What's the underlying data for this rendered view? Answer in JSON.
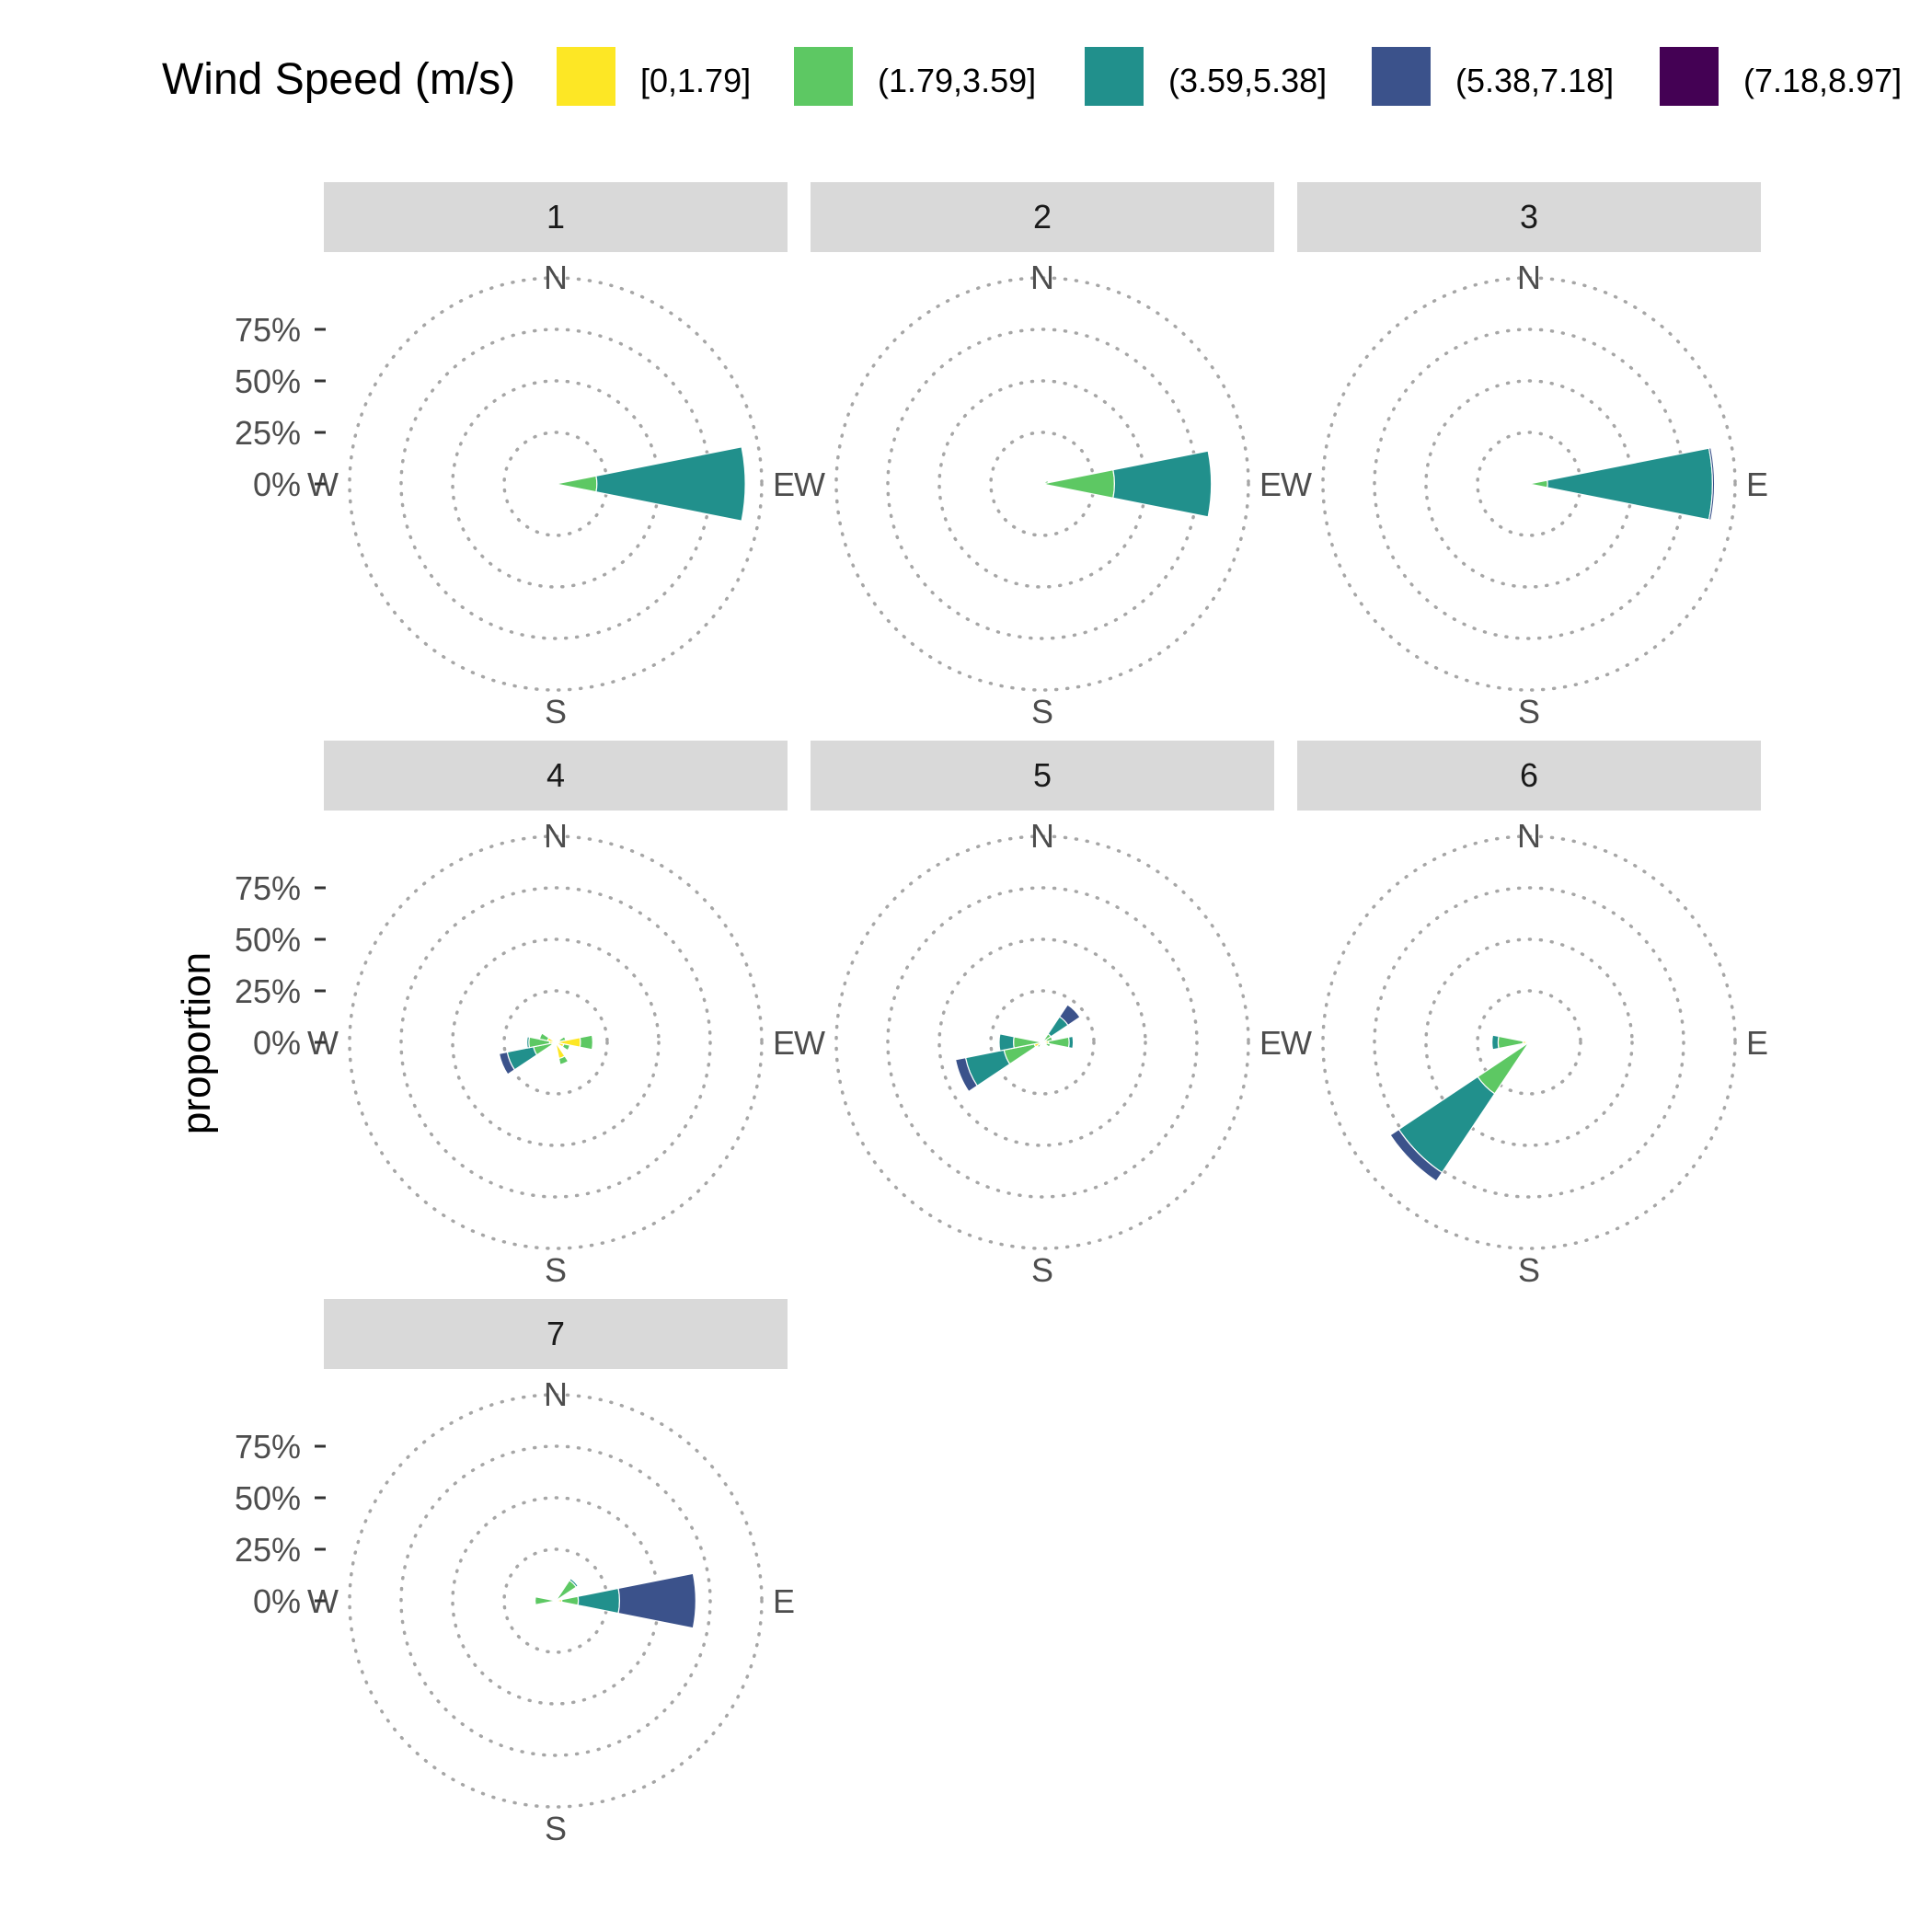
{
  "legend": {
    "title": "Wind Speed (m/s)",
    "entries": [
      {
        "label": "[0,1.79]",
        "color": "#FDE725"
      },
      {
        "label": "(1.79,3.59]",
        "color": "#5DC863"
      },
      {
        "label": "(3.59,5.38]",
        "color": "#21908C"
      },
      {
        "label": "(5.38,7.18]",
        "color": "#3B528B"
      },
      {
        "label": "(7.18,8.97]",
        "color": "#440154"
      }
    ]
  },
  "axis": {
    "ylabel": "proportion",
    "ticks": [
      "0%",
      "25%",
      "50%",
      "75%"
    ],
    "directions": [
      "N",
      "E",
      "S",
      "W"
    ]
  },
  "chart_data": {
    "type": "polar-stacked-bar",
    "title": "",
    "ylabel": "proportion",
    "r_range": [
      0,
      100
    ],
    "r_ticks": [
      0,
      25,
      50,
      75
    ],
    "bin_width_deg": 22.5,
    "speed_bins": [
      "[0,1.79]",
      "(1.79,3.59]",
      "(3.59,5.38]",
      "(5.38,7.18]",
      "(7.18,8.97]"
    ],
    "grid": true,
    "legend_position": "top",
    "panels": [
      {
        "name": "1",
        "bars": [
          {
            "dir": 90,
            "values": [
              0,
              20,
              72,
              0,
              0
            ]
          },
          {
            "dir": 270,
            "values": [
              0,
              0,
              0,
              0,
              1
            ]
          }
        ]
      },
      {
        "name": "2",
        "bars": [
          {
            "dir": 90,
            "values": [
              0,
              35,
              47,
              0,
              0
            ]
          },
          {
            "dir": 67.5,
            "values": [
              0,
              3,
              0,
              0,
              0
            ]
          },
          {
            "dir": 112.5,
            "values": [
              0,
              2,
              0,
              0,
              0
            ]
          },
          {
            "dir": 247.5,
            "values": [
              0,
              2,
              0,
              0,
              0
            ]
          }
        ]
      },
      {
        "name": "3",
        "bars": [
          {
            "dir": 90,
            "values": [
              0,
              9,
              80,
              1,
              0
            ]
          },
          {
            "dir": 270,
            "values": [
              0,
              0,
              0,
              0,
              1
            ]
          }
        ]
      },
      {
        "name": "4",
        "bars": [
          {
            "dir": 67.5,
            "values": [
              2,
              3,
              0,
              0,
              0
            ]
          },
          {
            "dir": 90,
            "values": [
              12,
              6,
              0,
              0,
              0
            ]
          },
          {
            "dir": 112.5,
            "values": [
              4,
              3,
              0,
              0,
              0
            ]
          },
          {
            "dir": 157.5,
            "values": [
              8,
              3,
              0,
              0,
              0
            ]
          },
          {
            "dir": 247.5,
            "values": [
              2,
              9,
              13,
              4,
              0
            ]
          },
          {
            "dir": 270,
            "values": [
              3,
              10,
              1,
              0,
              0
            ]
          },
          {
            "dir": 292.5,
            "values": [
              4,
              4,
              0,
              0,
              0
            ]
          }
        ]
      },
      {
        "name": "5",
        "bars": [
          {
            "dir": 45,
            "values": [
              0,
              5,
              10,
              7,
              0
            ]
          },
          {
            "dir": 67.5,
            "values": [
              2,
              3,
              0,
              0,
              0
            ]
          },
          {
            "dir": 90,
            "values": [
              3,
              10,
              2,
              0,
              0
            ]
          },
          {
            "dir": 112.5,
            "values": [
              2,
              2,
              0,
              0,
              0
            ]
          },
          {
            "dir": 157.5,
            "values": [
              0,
              1,
              0,
              0,
              0
            ]
          },
          {
            "dir": 225,
            "values": [
              0,
              3,
              0,
              0,
              0
            ]
          },
          {
            "dir": 247.5,
            "values": [
              4,
              15,
              19,
              5,
              0
            ]
          },
          {
            "dir": 270,
            "values": [
              0,
              14,
              7,
              0,
              0
            ]
          }
        ]
      },
      {
        "name": "6",
        "bars": [
          {
            "dir": 225,
            "values": [
              0,
              30,
              46,
              5,
              0
            ]
          },
          {
            "dir": 270,
            "values": [
              3,
              12,
              3,
              0,
              0
            ]
          },
          {
            "dir": 180,
            "values": [
              0,
              1,
              0,
              0,
              0
            ]
          }
        ]
      },
      {
        "name": "7",
        "bars": [
          {
            "dir": 90,
            "values": [
              3,
              8,
              20,
              37,
              0
            ]
          },
          {
            "dir": 45,
            "values": [
              0,
              12,
              1,
              0,
              0
            ]
          },
          {
            "dir": 270,
            "values": [
              0,
              10,
              0,
              0,
              0
            ]
          }
        ]
      }
    ]
  }
}
